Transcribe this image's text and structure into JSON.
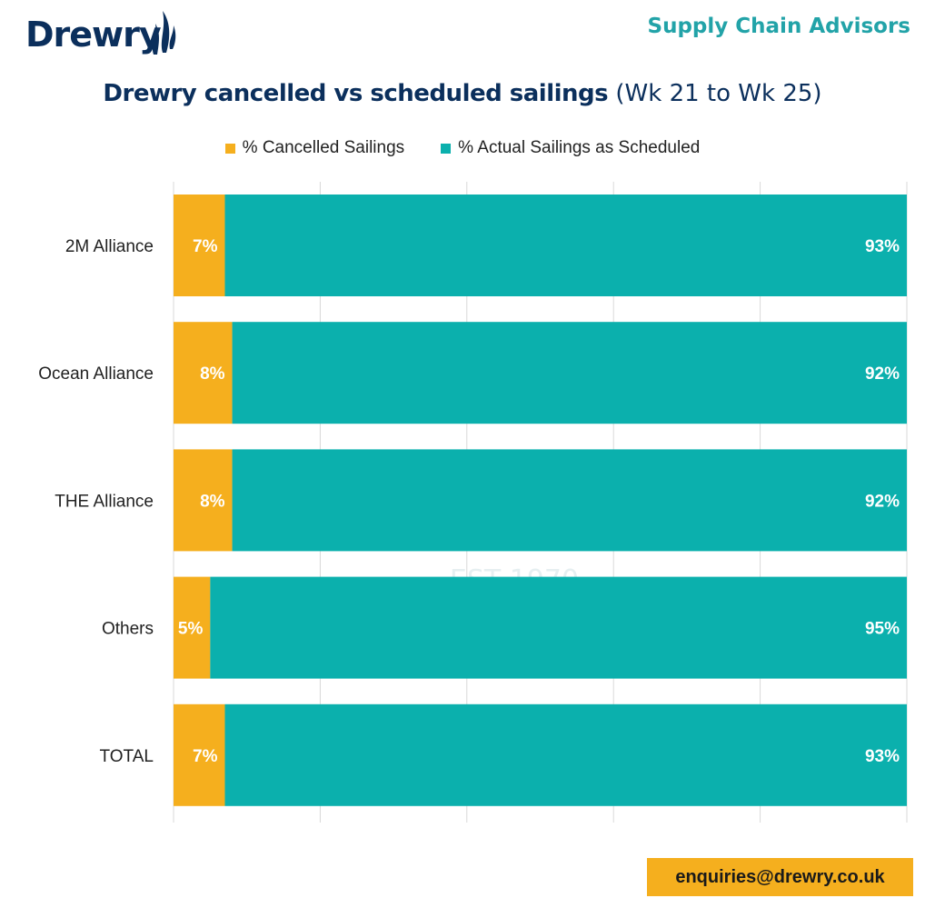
{
  "header": {
    "logo_text": "Drewry",
    "tagline": "Supply Chain Advisors"
  },
  "title": {
    "main": "Drewry cancelled vs scheduled sailings",
    "sub": "(Wk 21 to Wk 25)"
  },
  "watermark": {
    "text": "Drewry",
    "sub": "EST 1970"
  },
  "colors": {
    "cancelled": "#f5af1e",
    "actual": "#0bb0ad",
    "brand_navy": "#0b2f5c",
    "tagline_teal": "#22a3a8",
    "grid": "#d9d9d9"
  },
  "chart_data": {
    "type": "bar",
    "orientation": "horizontal",
    "stacked": true,
    "categories": [
      "2M Alliance",
      "Ocean Alliance",
      "THE Alliance",
      "Others",
      "TOTAL"
    ],
    "series": [
      {
        "name": "% Cancelled Sailings",
        "values": [
          7,
          8,
          8,
          5,
          7
        ],
        "labels": [
          "7%",
          "8%",
          "8%",
          "5%",
          "7%"
        ]
      },
      {
        "name": "% Actual Sailings as Scheduled",
        "values": [
          93,
          92,
          92,
          95,
          93
        ],
        "labels": [
          "93%",
          "92%",
          "92%",
          "95%",
          "93%"
        ]
      }
    ],
    "xlim": [
      0,
      100
    ],
    "grid": true,
    "legend_position": "top"
  },
  "footer": {
    "email": "enquiries@drewry.co.uk"
  }
}
